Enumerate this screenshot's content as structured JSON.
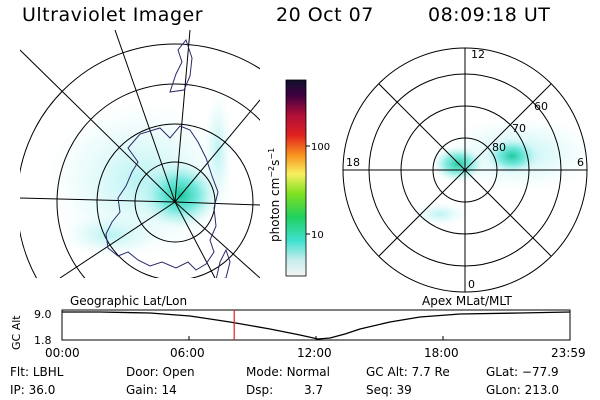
{
  "header": {
    "instrument": "Ultraviolet Imager",
    "date": "20 Oct 07",
    "time": "08:09:18 UT"
  },
  "colorbar": {
    "label": "photon cm",
    "label_sup1": "−2",
    "label_mid": "s",
    "label_sup2": "−1",
    "tick_high": "100",
    "tick_low": "10"
  },
  "left_map": {
    "caption": "Geographic Lat/Lon"
  },
  "right_map": {
    "caption": "Apex MLat/MLT",
    "mlt_labels": [
      "12",
      "18",
      "6",
      "0"
    ],
    "lat_labels": [
      "60",
      "70",
      "80"
    ]
  },
  "alt_plot": {
    "ylabel": "GC Alt",
    "y_ticks": [
      "9.0",
      "1.8"
    ],
    "x_ticks": [
      "00:00",
      "06:00",
      "12:00",
      "18:00",
      "23:59"
    ],
    "current_time_fraction": 0.339
  },
  "params": {
    "flt_label": "Flt:",
    "flt_value": "LBHL",
    "ip_label": "IP:",
    "ip_value": "36.0",
    "door_label": "Door:",
    "door_value": "Open",
    "gain_label": "Gain:",
    "gain_value": "14",
    "mode_label": "Mode:",
    "mode_value": "Normal",
    "dsp_label": "Dsp:",
    "dsp_value": "3.7",
    "gcalt_label": "GC Alt:",
    "gcalt_value": "7.7 Re",
    "seq_label": "Seq:",
    "seq_value": "39",
    "glat_label": "GLat:",
    "glat_value": "−77.9",
    "glon_label": "GLon:",
    "glon_value": "213.0"
  },
  "colors": {
    "aurora_light": "#b8f0f0",
    "aurora_mid": "#40e0d0",
    "aurora_core": "#00c090",
    "time_marker": "#e02020",
    "coastline": "#2a2a6a"
  }
}
